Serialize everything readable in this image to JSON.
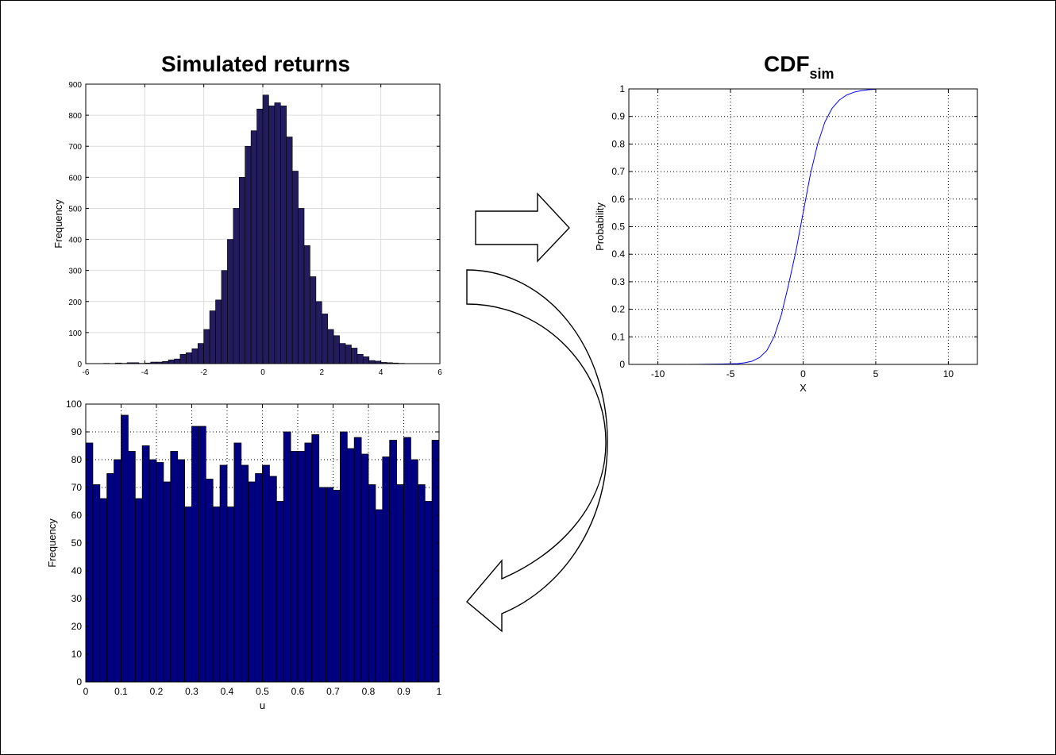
{
  "chart_data": [
    {
      "type": "bar",
      "id": "returns-hist",
      "title": "Simulated returns",
      "xlabel": "",
      "ylabel": "Frequency",
      "xlim": [
        -6,
        6
      ],
      "ylim": [
        0,
        900
      ],
      "xticks": [
        -6,
        -4,
        -2,
        0,
        2,
        4,
        6
      ],
      "yticks": [
        0,
        100,
        200,
        300,
        400,
        500,
        600,
        700,
        800,
        900
      ],
      "grid": true,
      "bar_color": "#221c5c",
      "bin_start": -5.4,
      "bin_width": 0.2,
      "values": [
        1,
        0,
        2,
        1,
        3,
        3,
        1,
        2,
        5,
        5,
        7,
        12,
        15,
        30,
        35,
        48,
        65,
        110,
        170,
        205,
        300,
        400,
        500,
        600,
        700,
        750,
        820,
        865,
        830,
        840,
        830,
        730,
        620,
        500,
        380,
        280,
        200,
        160,
        110,
        90,
        65,
        60,
        50,
        30,
        22,
        10,
        8,
        4,
        3,
        2,
        1
      ]
    },
    {
      "type": "bar",
      "id": "uniform-hist",
      "title": "",
      "xlabel": "u",
      "ylabel": "Frequency",
      "xlim": [
        0,
        1
      ],
      "ylim": [
        0,
        100
      ],
      "xticks": [
        0,
        0.1,
        0.2,
        0.3,
        0.4,
        0.5,
        0.6,
        0.7,
        0.8,
        0.9,
        1
      ],
      "yticks": [
        0,
        10,
        20,
        30,
        40,
        50,
        60,
        70,
        80,
        90,
        100
      ],
      "grid": true,
      "bar_color": "#000080",
      "values": [
        86,
        71,
        66,
        75,
        80,
        96,
        83,
        66,
        85,
        80,
        79,
        72,
        83,
        80,
        63,
        92,
        92,
        73,
        63,
        78,
        63,
        86,
        78,
        72,
        75,
        78,
        74,
        65,
        90,
        83,
        83,
        86,
        89,
        70,
        70,
        69,
        90,
        84,
        88,
        82,
        71,
        62,
        81,
        87,
        71,
        88,
        80,
        71,
        65,
        87
      ]
    },
    {
      "type": "line",
      "id": "cdf-plot",
      "title": "CDF",
      "title_sub": "sim",
      "xlabel": "X",
      "ylabel": "Probability",
      "xlim": [
        -12,
        12
      ],
      "ylim": [
        0,
        1
      ],
      "xticks": [
        -10,
        -5,
        0,
        5,
        10
      ],
      "yticks": [
        0,
        0.1,
        0.2,
        0.3,
        0.4,
        0.5,
        0.6,
        0.7,
        0.8,
        0.9,
        1
      ],
      "grid": true,
      "line_color": "#0000ff",
      "x": [
        -8,
        -7,
        -6,
        -5,
        -4.5,
        -4,
        -3.5,
        -3,
        -2.5,
        -2,
        -1.5,
        -1,
        -0.5,
        0,
        0.5,
        1,
        1.5,
        2,
        2.5,
        3,
        3.5,
        4,
        4.5,
        5
      ],
      "y": [
        0.0,
        0.0005,
        0.001,
        0.002,
        0.003,
        0.006,
        0.012,
        0.025,
        0.05,
        0.1,
        0.18,
        0.29,
        0.41,
        0.55,
        0.69,
        0.8,
        0.88,
        0.93,
        0.96,
        0.978,
        0.988,
        0.994,
        0.997,
        0.999
      ]
    }
  ],
  "arrows": {
    "color": "#000000"
  }
}
